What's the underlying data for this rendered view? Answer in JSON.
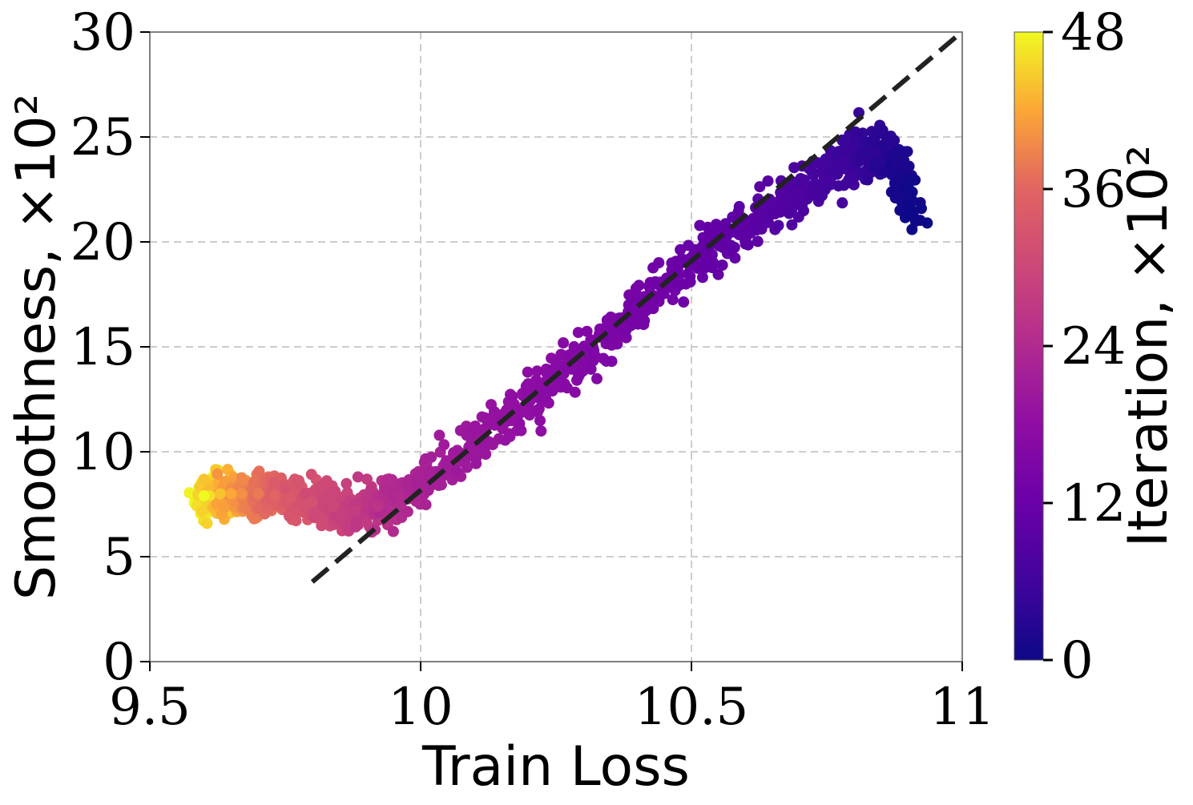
{
  "chart_data": {
    "type": "scatter",
    "xlabel": "Train Loss",
    "ylabel": "Smoothness, ×10²",
    "xlim": [
      9.5,
      11
    ],
    "ylim": [
      0,
      30
    ],
    "xticks": [
      9.5,
      10,
      10.5,
      11
    ],
    "xtick_labels": [
      "9.5",
      "10",
      "10.5",
      "11"
    ],
    "yticks": [
      0,
      5,
      10,
      15,
      20,
      25,
      30
    ],
    "ytick_labels": [
      "0",
      "5",
      "10",
      "15",
      "20",
      "25",
      "30"
    ],
    "grid": true,
    "colorbar": {
      "label": "Iteration, ×10²",
      "colormap": "plasma",
      "range": [
        0,
        48
      ],
      "ticks": [
        0,
        12,
        24,
        36,
        48
      ],
      "tick_labels": [
        "0",
        "12",
        "24",
        "36",
        "48"
      ]
    },
    "fit_line": {
      "style": "dashed",
      "color": "#222222",
      "x": [
        9.8,
        10.99
      ],
      "y": [
        3.8,
        29.8
      ]
    },
    "series": [
      {
        "color_by": "iteration",
        "points": [
          {
            "iteration": 0,
            "x": 10.91,
            "y": 21.2
          },
          {
            "iteration": 2,
            "x": 10.88,
            "y": 23.8
          },
          {
            "iteration": 4,
            "x": 10.84,
            "y": 24.3
          },
          {
            "iteration": 6,
            "x": 10.78,
            "y": 23.8
          },
          {
            "iteration": 8,
            "x": 10.7,
            "y": 22.3
          },
          {
            "iteration": 10,
            "x": 10.6,
            "y": 20.8
          },
          {
            "iteration": 12,
            "x": 10.5,
            "y": 19.0
          },
          {
            "iteration": 14,
            "x": 10.4,
            "y": 17.0
          },
          {
            "iteration": 16,
            "x": 10.3,
            "y": 14.5
          },
          {
            "iteration": 18,
            "x": 10.2,
            "y": 12.5
          },
          {
            "iteration": 20,
            "x": 10.1,
            "y": 10.5
          },
          {
            "iteration": 22,
            "x": 10.02,
            "y": 8.8
          },
          {
            "iteration": 24,
            "x": 9.96,
            "y": 7.9
          },
          {
            "iteration": 26,
            "x": 9.92,
            "y": 7.4
          },
          {
            "iteration": 28,
            "x": 9.88,
            "y": 7.2
          },
          {
            "iteration": 30,
            "x": 9.84,
            "y": 7.4
          },
          {
            "iteration": 32,
            "x": 9.8,
            "y": 7.6
          },
          {
            "iteration": 34,
            "x": 9.76,
            "y": 7.8
          },
          {
            "iteration": 36,
            "x": 9.73,
            "y": 7.9
          },
          {
            "iteration": 38,
            "x": 9.7,
            "y": 8.0
          },
          {
            "iteration": 40,
            "x": 9.67,
            "y": 8.0
          },
          {
            "iteration": 42,
            "x": 9.65,
            "y": 8.0
          },
          {
            "iteration": 44,
            "x": 9.63,
            "y": 8.0
          },
          {
            "iteration": 46,
            "x": 9.61,
            "y": 7.9
          },
          {
            "iteration": 48,
            "x": 9.6,
            "y": 7.9
          }
        ]
      }
    ]
  }
}
